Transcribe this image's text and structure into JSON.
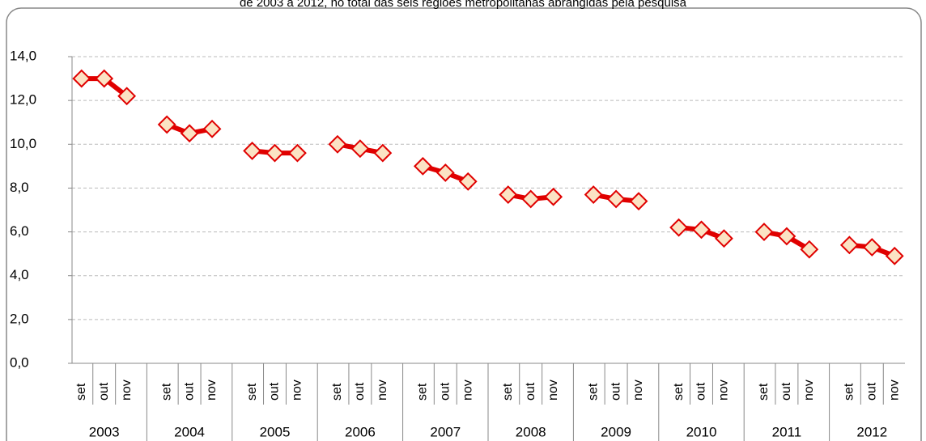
{
  "chart_data": {
    "type": "line",
    "title": "de 2003 a 2012, no total das seis regiões metropolitanas abrangidas pela pesquisa",
    "groups": [
      "2003",
      "2004",
      "2005",
      "2006",
      "2007",
      "2008",
      "2009",
      "2010",
      "2011",
      "2012"
    ],
    "categories": [
      "set",
      "out",
      "nov",
      "set",
      "out",
      "nov",
      "set",
      "out",
      "nov",
      "set",
      "out",
      "nov",
      "set",
      "out",
      "nov",
      "set",
      "out",
      "nov",
      "set",
      "out",
      "nov",
      "set",
      "out",
      "nov",
      "set",
      "out",
      "nov",
      "set",
      "out",
      "nov"
    ],
    "series": [
      {
        "name": null,
        "color": "#e00000",
        "values": [
          13.0,
          13.0,
          12.2,
          10.9,
          10.5,
          10.7,
          9.7,
          9.6,
          9.6,
          10.0,
          9.8,
          9.6,
          9.0,
          8.7,
          8.3,
          7.7,
          7.5,
          7.6,
          7.7,
          7.5,
          7.4,
          6.2,
          6.1,
          5.7,
          6.0,
          5.8,
          5.2,
          5.4,
          5.3,
          4.9
        ]
      }
    ],
    "ylim": [
      0,
      14
    ],
    "yticks": [
      {
        "value": 0,
        "label": "0,0"
      },
      {
        "value": 2,
        "label": "2,0"
      },
      {
        "value": 4,
        "label": "4,0"
      },
      {
        "value": 6,
        "label": "6,0"
      },
      {
        "value": 8,
        "label": "8,0"
      },
      {
        "value": 10,
        "label": "10,0"
      },
      {
        "value": 12,
        "label": "12,0"
      },
      {
        "value": 14,
        "label": "14,0"
      }
    ],
    "grid": true
  }
}
